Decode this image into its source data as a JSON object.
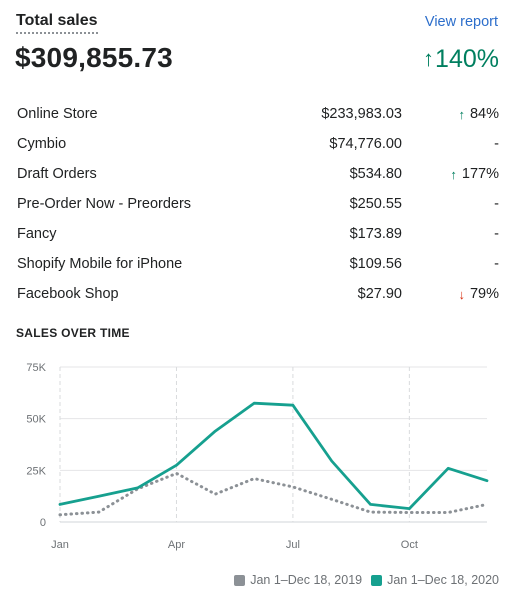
{
  "card": {
    "title": "Total sales",
    "view_report_label": "View report",
    "total_value": "$309,855.73",
    "total_change": "140%",
    "total_change_direction": "up"
  },
  "channels": [
    {
      "name": "Online Store",
      "amount": "$233,983.03",
      "change": "84%",
      "direction": "up"
    },
    {
      "name": "Cymbio",
      "amount": "$74,776.00",
      "change": "-",
      "direction": "none"
    },
    {
      "name": "Draft Orders",
      "amount": "$534.80",
      "change": "177%",
      "direction": "up"
    },
    {
      "name": "Pre-Order Now - Preorders",
      "amount": "$250.55",
      "change": "-",
      "direction": "none"
    },
    {
      "name": "Fancy",
      "amount": "$173.89",
      "change": "-",
      "direction": "none"
    },
    {
      "name": "Shopify Mobile for iPhone",
      "amount": "$109.56",
      "change": "-",
      "direction": "none"
    },
    {
      "name": "Facebook Shop",
      "amount": "$27.90",
      "change": "79%",
      "direction": "down"
    }
  ],
  "colors": {
    "up": "#007f5f",
    "down": "#d82c0d",
    "series_2019": "#8c9196",
    "series_2020": "#16a08f"
  },
  "chart_data": {
    "type": "line",
    "title": "SALES OVER TIME",
    "x_tick_labels": [
      "Jan",
      "Apr",
      "Jul",
      "Oct"
    ],
    "y_tick_labels": [
      "75K",
      "50K",
      "25K",
      "0"
    ],
    "ylim": [
      0,
      75000
    ],
    "grid": true,
    "legend_position": "bottom-right",
    "x": [
      1,
      2,
      3,
      4,
      5,
      6,
      7,
      8,
      9,
      10,
      11,
      12
    ],
    "series": [
      {
        "name": "Jan 1–Dec 18, 2019",
        "style": "dotted",
        "values": [
          3500,
          4800,
          16000,
          23500,
          13500,
          21000,
          17000,
          11000,
          4800,
          4600,
          4600,
          8500
        ]
      },
      {
        "name": "Jan 1–Dec 18, 2020",
        "style": "solid",
        "values": [
          8500,
          12500,
          16500,
          27500,
          44000,
          57500,
          56500,
          29500,
          8500,
          6500,
          26000,
          20000
        ]
      }
    ]
  }
}
